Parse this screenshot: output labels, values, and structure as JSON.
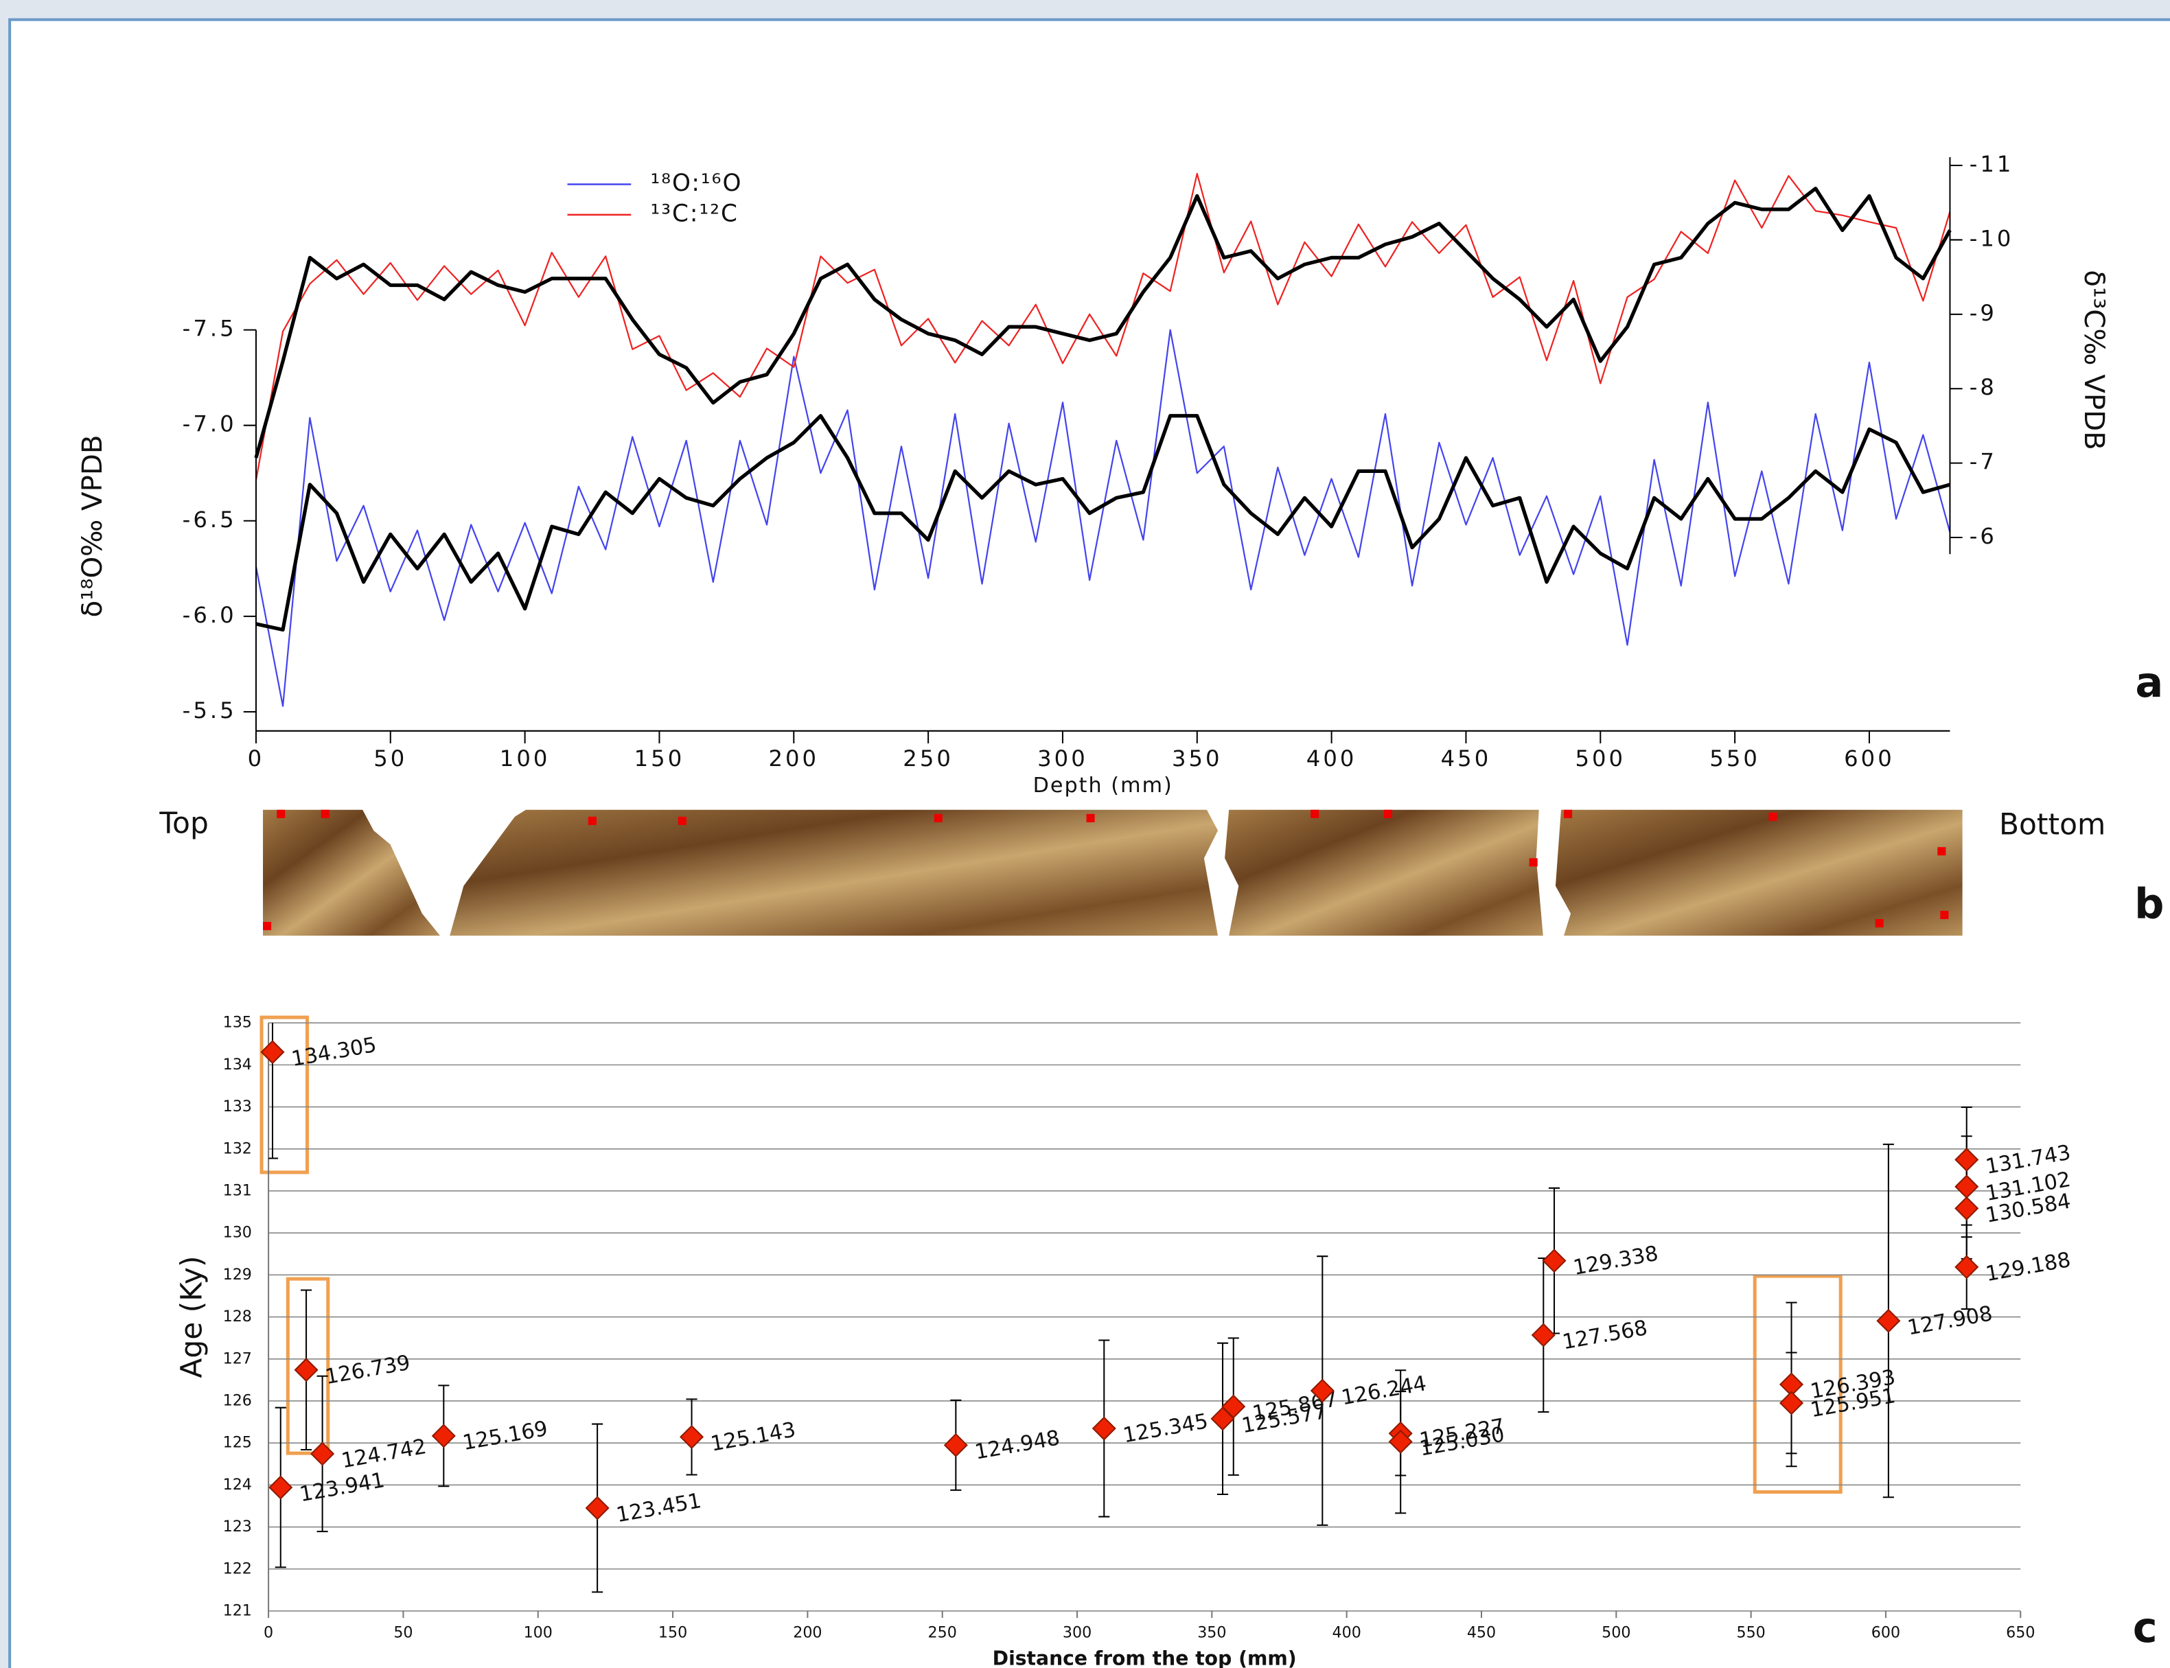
{
  "chart_data": [
    {
      "type": "line",
      "xlabel": "Depth (mm)",
      "ylabel": "δ¹⁸O‰ VPDB",
      "y2label": "δ¹³C‰ VPDB",
      "x": [
        0,
        10,
        20,
        30,
        40,
        50,
        60,
        70,
        80,
        90,
        100,
        110,
        120,
        130,
        140,
        150,
        160,
        170,
        180,
        190,
        200,
        210,
        220,
        230,
        240,
        250,
        260,
        270,
        280,
        290,
        300,
        310,
        320,
        330,
        340,
        350,
        360,
        370,
        380,
        390,
        400,
        410,
        420,
        430,
        440,
        450,
        460,
        470,
        480,
        490,
        500,
        510,
        520,
        530,
        540,
        550,
        560,
        570,
        580,
        590,
        600,
        610,
        620,
        630
      ],
      "xlim": [
        0,
        630
      ],
      "xticks": [
        0,
        50,
        100,
        150,
        200,
        250,
        300,
        350,
        400,
        450,
        500,
        550,
        600
      ],
      "ylim": [
        -5.4,
        -8.4
      ],
      "yticks": [
        {
          "value": -7.5,
          "label": "-7.5"
        },
        {
          "value": -7,
          "label": "-7.0"
        },
        {
          "value": -6.5,
          "label": "-6.5"
        },
        {
          "value": -6,
          "label": "-6.0"
        },
        {
          "value": -5.5,
          "label": "-5.5"
        }
      ],
      "y2lim": [
        -3.4,
        -11.1
      ],
      "y2ticks": [
        -11,
        -10,
        -9,
        -8,
        -7,
        -6
      ],
      "series": [
        {
          "name": "¹⁸O:¹⁶O",
          "color": "#4444ee",
          "values": [
            -6.26,
            -5.53,
            -7.04,
            -6.29,
            -6.58,
            -6.13,
            -6.45,
            -5.98,
            -6.48,
            -6.13,
            -6.49,
            -6.12,
            -6.68,
            -6.35,
            -6.94,
            -6.47,
            -6.92,
            -6.18,
            -6.92,
            -6.48,
            -7.36,
            -6.75,
            -7.08,
            -6.14,
            -6.89,
            -6.2,
            -7.06,
            -6.17,
            -7.01,
            -6.39,
            -7.12,
            -6.19,
            -6.92,
            -6.4,
            -7.5,
            -6.75,
            -6.89,
            -6.14,
            -6.78,
            -6.32,
            -6.72,
            -6.31,
            -7.06,
            -6.16,
            -6.91,
            -6.48,
            -6.83,
            -6.32,
            -6.63,
            -6.22,
            -6.63,
            -5.85,
            -6.82,
            -6.16,
            -7.12,
            -6.21,
            -6.76,
            -6.17,
            -7.06,
            -6.45,
            -7.33,
            -6.51,
            -6.95,
            -6.44
          ]
        },
        {
          "name": "¹³C:¹²C",
          "color": "#ee2222",
          "axis": "y2",
          "values": [
            -6.77,
            -8.77,
            -9.41,
            -9.73,
            -9.27,
            -9.69,
            -9.19,
            -9.65,
            -9.27,
            -9.59,
            -8.85,
            -9.83,
            -9.23,
            -9.78,
            -8.53,
            -8.71,
            -7.98,
            -8.21,
            -7.89,
            -8.54,
            -8.29,
            -9.78,
            -9.42,
            -9.6,
            -8.58,
            -8.94,
            -8.35,
            -8.91,
            -8.58,
            -9.13,
            -8.34,
            -9.0,
            -8.44,
            -9.55,
            -9.31,
            -10.89,
            -9.56,
            -10.25,
            -9.13,
            -9.97,
            -9.51,
            -10.21,
            -9.64,
            -10.24,
            -9.82,
            -10.2,
            -9.23,
            -9.5,
            -8.38,
            -9.45,
            -8.07,
            -9.23,
            -9.47,
            -10.11,
            -9.82,
            -10.8,
            -10.16,
            -10.86,
            -10.39,
            -10.33,
            -10.24,
            -10.16,
            -9.18,
            -10.38
          ]
        },
        {
          "color": "#000000",
          "values": [
            -5.96,
            -5.93,
            -6.69,
            -6.54,
            -6.18,
            -6.43,
            -6.25,
            -6.43,
            -6.18,
            -6.33,
            -6.04,
            -6.47,
            -6.43,
            -6.65,
            -6.54,
            -6.72,
            -6.62,
            -6.58,
            -6.72,
            -6.83,
            -6.91,
            -7.05,
            -6.83,
            -6.54,
            -6.54,
            -6.4,
            -6.76,
            -6.62,
            -6.76,
            -6.69,
            -6.72,
            -6.54,
            -6.62,
            -6.65,
            -7.05,
            -7.05,
            -6.69,
            -6.54,
            -6.43,
            -6.62,
            -6.47,
            -6.76,
            -6.76,
            -6.36,
            -6.51,
            -6.83,
            -6.58,
            -6.62,
            -6.18,
            -6.47,
            -6.33,
            -6.25,
            -6.62,
            -6.51,
            -6.72,
            -6.51,
            -6.51,
            -6.62,
            -6.76,
            -6.65,
            -6.98,
            -6.91,
            -6.65,
            -6.69
          ]
        },
        {
          "color": "#000000",
          "axis": "y2",
          "values": [
            -7.07,
            -8.37,
            -9.76,
            -9.48,
            -9.67,
            -9.39,
            -9.39,
            -9.2,
            -9.57,
            -9.39,
            -9.3,
            -9.48,
            -9.48,
            -9.48,
            -8.93,
            -8.46,
            -8.28,
            -7.81,
            -8.09,
            -8.19,
            -8.74,
            -9.48,
            -9.67,
            -9.2,
            -8.93,
            -8.74,
            -8.65,
            -8.46,
            -8.83,
            -8.83,
            -8.74,
            -8.65,
            -8.74,
            -9.3,
            -9.76,
            -10.59,
            -9.76,
            -9.85,
            -9.48,
            -9.67,
            -9.76,
            -9.76,
            -9.94,
            -10.04,
            -10.22,
            -9.85,
            -9.48,
            -9.2,
            -8.83,
            -9.2,
            -8.37,
            -8.83,
            -9.67,
            -9.76,
            -10.22,
            -10.5,
            -10.41,
            -10.41,
            -10.69,
            -10.13,
            -10.59,
            -9.76,
            -9.48,
            -10.13
          ]
        }
      ]
    },
    {
      "type": "scatter",
      "xlabel": "Distance from the top (mm)",
      "ylabel": "Age (Ky)",
      "xlim": [
        0,
        650
      ],
      "xticks": [
        0,
        50,
        100,
        150,
        200,
        250,
        300,
        350,
        400,
        450,
        500,
        550,
        600,
        650
      ],
      "ylim": [
        121,
        135
      ],
      "yticks": [
        121,
        122,
        123,
        124,
        125,
        126,
        127,
        128,
        129,
        130,
        131,
        132,
        133,
        134,
        135
      ],
      "grid": true,
      "color": "#ee2200",
      "x": [
        1.5,
        4.5,
        14,
        20,
        65,
        122,
        157,
        255,
        310,
        354,
        358,
        391,
        420,
        420,
        473,
        477,
        565,
        565,
        601,
        630,
        630,
        630,
        630
      ],
      "values": [
        134.305,
        123.941,
        126.739,
        124.742,
        125.169,
        123.451,
        125.143,
        124.948,
        125.345,
        125.577,
        125.867,
        126.244,
        125.227,
        125.03,
        127.568,
        129.338,
        126.393,
        125.951,
        127.908,
        131.743,
        131.102,
        130.584,
        129.188
      ],
      "value_labels": [
        "134.305",
        "123.941",
        "126.739",
        "124.742",
        "125.169",
        "123.451",
        "125.143",
        "124.948",
        "125.345",
        "125.577",
        "125.867",
        "126.244",
        "125.227",
        "125.030",
        "127.568",
        "129.338",
        "126.393",
        "125.951",
        "127.908",
        "131.743",
        "131.102",
        "130.584",
        "129.188"
      ],
      "errors": [
        2.53,
        1.9,
        1.9,
        1.85,
        1.2,
        2.0,
        0.9,
        1.07,
        2.1,
        1.8,
        1.63,
        3.2,
        1.0,
        1.7,
        1.83,
        1.73,
        1.95,
        1.2,
        4.2,
        1.25,
        1.2,
        1.2,
        1.0
      ]
    }
  ],
  "core_image": {
    "top_label": "Top",
    "bottom_label": "Bottom"
  },
  "panel_labels": [
    "a",
    "b",
    "c"
  ]
}
